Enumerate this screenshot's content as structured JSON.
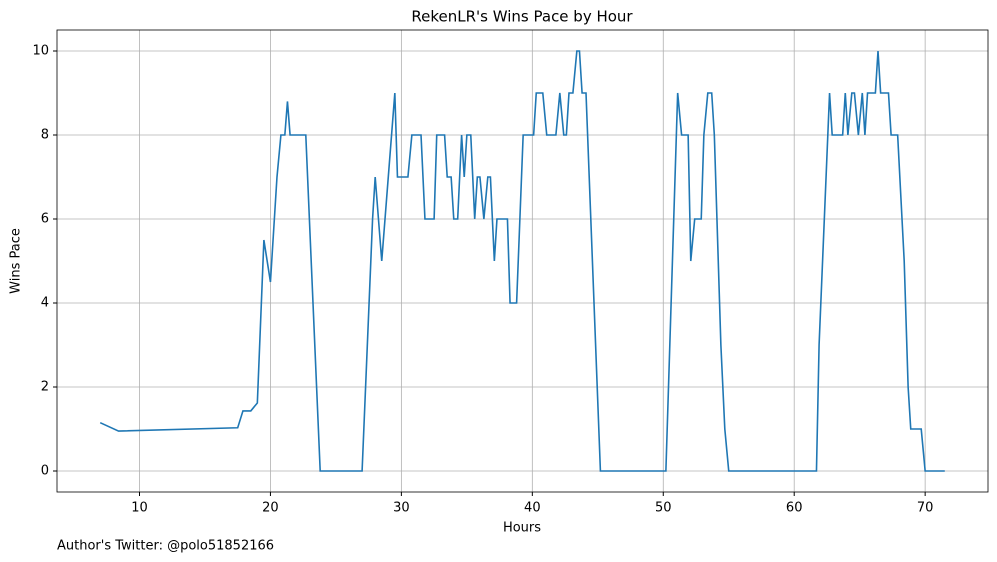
{
  "chart_data": {
    "type": "line",
    "title": "RekenLR's Wins Pace by Hour",
    "x_label": "Hours",
    "y_label": "Wins Pace",
    "footer": "Author's Twitter: @polo51852166",
    "xlim": [
      3.7,
      74.8
    ],
    "ylim": [
      -0.5,
      10.5
    ],
    "xticks": [
      10,
      20,
      30,
      40,
      50,
      60,
      70
    ],
    "yticks": [
      0,
      2,
      4,
      6,
      8,
      10
    ],
    "grid": true,
    "x": [
      7.0,
      8.4,
      17.5,
      17.9,
      18.5,
      19.0,
      19.5,
      20.0,
      20.5,
      20.8,
      21.1,
      21.3,
      21.5,
      22.7,
      23.8,
      27.0,
      27.8,
      28.0,
      28.5,
      29.5,
      29.7,
      30.5,
      30.8,
      31.5,
      31.8,
      32.5,
      32.7,
      33.3,
      33.5,
      33.8,
      34.0,
      34.3,
      34.6,
      34.8,
      35.0,
      35.3,
      35.6,
      35.8,
      36.0,
      36.3,
      36.6,
      36.8,
      37.1,
      37.3,
      38.1,
      38.3,
      38.8,
      39.3,
      40.1,
      40.3,
      40.8,
      41.1,
      41.8,
      42.1,
      42.4,
      42.6,
      42.8,
      43.1,
      43.4,
      43.6,
      43.8,
      44.1,
      45.2,
      50.2,
      51.1,
      51.4,
      51.9,
      52.1,
      52.4,
      52.9,
      53.1,
      53.4,
      53.7,
      53.9,
      54.4,
      54.7,
      55.0,
      61.7,
      61.9,
      62.7,
      62.9,
      63.7,
      63.9,
      64.1,
      64.4,
      64.6,
      64.9,
      65.2,
      65.4,
      65.6,
      66.2,
      66.4,
      66.6,
      67.2,
      67.4,
      67.9,
      68.4,
      68.7,
      68.9,
      69.7,
      70.0,
      71.5
    ],
    "series": [
      {
        "name": "Wins Pace",
        "color": "#1f77b4",
        "values": [
          1.15,
          0.95,
          1.03,
          1.43,
          1.43,
          1.62,
          5.5,
          4.5,
          7,
          8,
          8,
          8.8,
          8,
          8,
          0,
          0,
          6,
          7,
          5,
          9,
          7,
          7,
          8,
          8,
          6,
          6,
          8,
          8,
          7,
          7,
          6,
          6,
          8,
          7,
          8,
          8,
          6,
          7,
          7,
          6,
          7,
          7,
          5,
          6,
          6,
          4,
          4,
          8,
          8,
          9,
          9,
          8,
          8,
          9,
          8,
          8,
          9,
          9,
          10,
          10,
          9,
          9,
          0,
          0,
          9,
          8,
          8,
          5,
          6,
          6,
          8,
          9,
          9,
          8,
          3,
          1,
          0,
          0,
          3,
          9,
          8,
          8,
          9,
          8,
          9,
          9,
          8,
          9,
          8,
          9,
          9,
          10,
          9,
          9,
          8,
          8,
          5,
          2,
          1,
          1,
          0,
          0
        ]
      }
    ]
  }
}
